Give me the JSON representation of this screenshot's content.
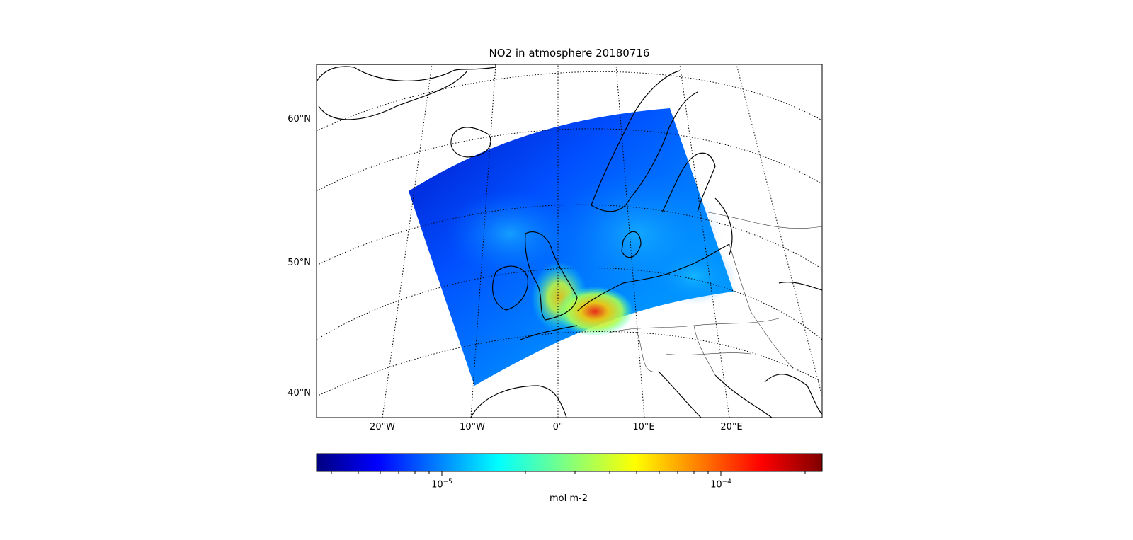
{
  "figure": {
    "title": "NO2 in atmosphere 20180716",
    "latitude_labels": [
      "60°N",
      "50°N",
      "40°N"
    ],
    "longitude_labels": [
      "20°W",
      "10°W",
      "0°",
      "10°E",
      "20°E"
    ]
  },
  "colorbar": {
    "label": "mol m-2",
    "scale": "log",
    "colormap": "jet",
    "tick_labels": [
      {
        "base": "10",
        "exponent": "−5"
      },
      {
        "base": "10",
        "exponent": "−4"
      }
    ],
    "colors": [
      "#00007f",
      "#0000ff",
      "#00ffff",
      "#ffff00",
      "#ff0000",
      "#7f0000"
    ]
  }
}
